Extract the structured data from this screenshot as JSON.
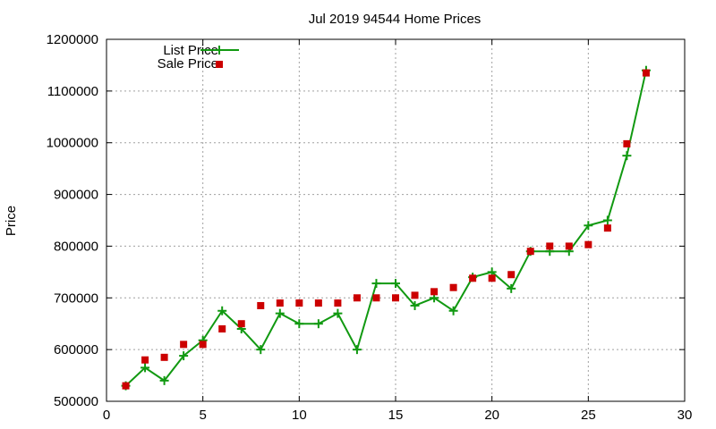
{
  "chart_data": {
    "type": "line",
    "title": "Jul 2019 94544 Home Prices",
    "xlabel": "",
    "ylabel": "Price",
    "xlim": [
      0,
      30
    ],
    "ylim": [
      500000,
      1200000
    ],
    "x_ticks": [
      0,
      5,
      10,
      15,
      20,
      25,
      30
    ],
    "y_ticks": [
      500000,
      600000,
      700000,
      800000,
      900000,
      1000000,
      1100000,
      1200000
    ],
    "grid": true,
    "legend_position": "top-left",
    "x": [
      1,
      2,
      3,
      4,
      5,
      6,
      7,
      8,
      9,
      10,
      11,
      12,
      13,
      14,
      15,
      16,
      17,
      18,
      19,
      20,
      21,
      22,
      23,
      24,
      25,
      26,
      27,
      28
    ],
    "series": [
      {
        "name": "List Price",
        "style": "linespoints",
        "color": "#119911",
        "marker": "plus",
        "values": [
          530000,
          565000,
          540000,
          588000,
          618000,
          675000,
          640000,
          600000,
          670000,
          650000,
          650000,
          670000,
          600000,
          728000,
          728000,
          685000,
          700000,
          675000,
          740000,
          750000,
          718000,
          790000,
          790000,
          790000,
          840000,
          850000,
          975000,
          1140000
        ]
      },
      {
        "name": "Sale Price",
        "style": "points",
        "color": "#cc0000",
        "marker": "square",
        "values": [
          530000,
          580000,
          585000,
          610000,
          610000,
          640000,
          650000,
          685000,
          690000,
          690000,
          690000,
          690000,
          700000,
          700000,
          700000,
          705000,
          712000,
          720000,
          738000,
          738000,
          745000,
          790000,
          800000,
          800000,
          803000,
          835000,
          998000,
          1135000
        ]
      }
    ]
  }
}
